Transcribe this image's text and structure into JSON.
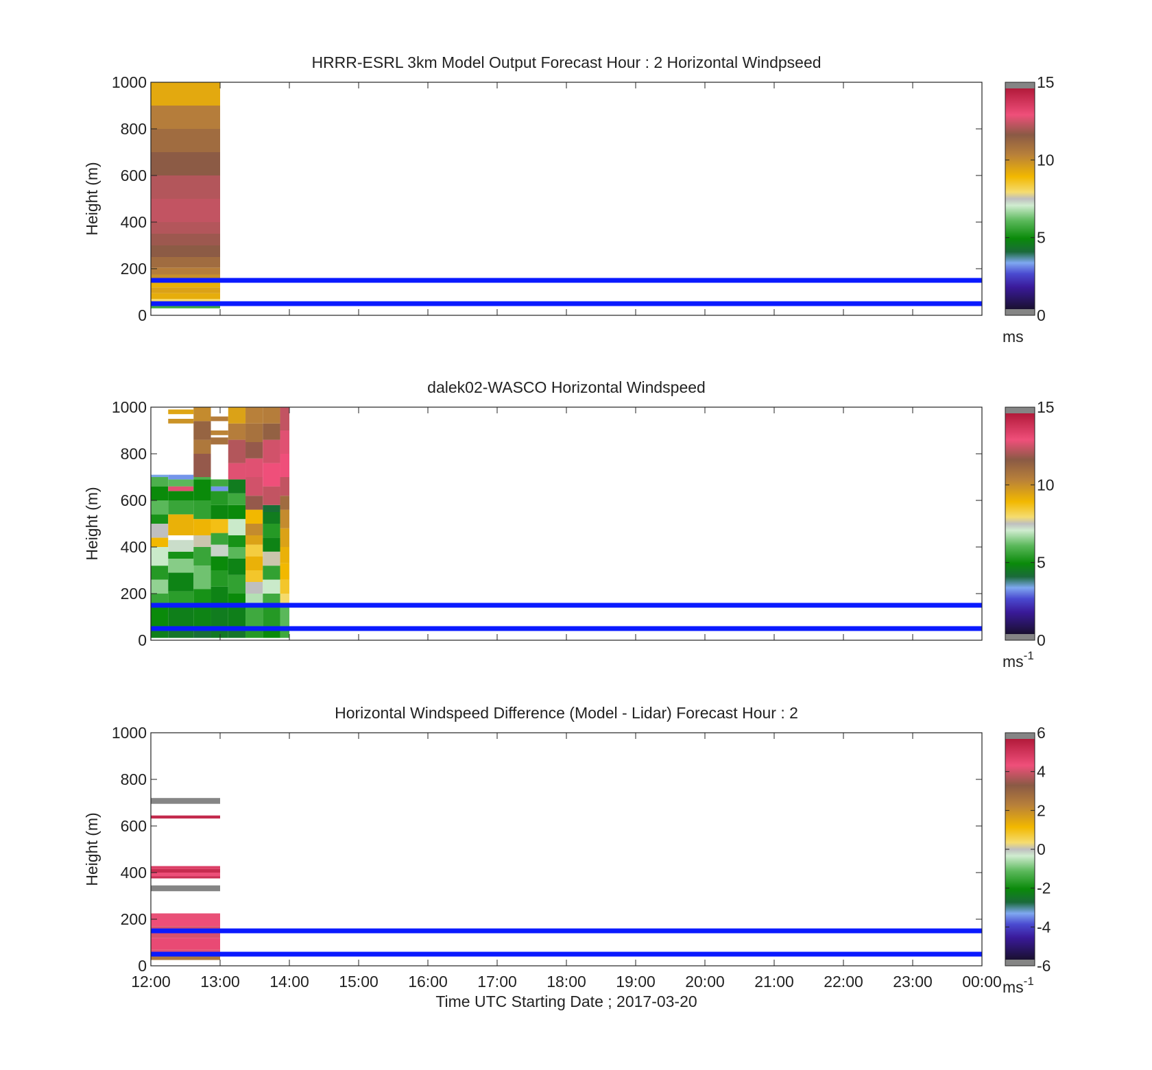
{
  "chart_data": [
    {
      "type": "heatmap",
      "title": "HRRR-ESRL 3km Model Output   Forecast Hour : 2 Horizontal Windpseed",
      "ylabel": "Height (m)",
      "xlabel": "",
      "ylim": [
        0,
        1000
      ],
      "yticks": [
        0,
        200,
        400,
        600,
        800,
        1000
      ],
      "xticks": [
        "12:00",
        "13:00",
        "14:00",
        "15:00",
        "16:00",
        "17:00",
        "18:00",
        "19:00",
        "20:00",
        "21:00",
        "22:00",
        "23:00",
        "00:00"
      ],
      "colorbar": {
        "range": [
          0,
          15
        ],
        "ticks": [
          0,
          5,
          10,
          15
        ],
        "unit": "ms",
        "unit_sup": "",
        "palette": "windspeed"
      },
      "reference_lines_m": [
        50,
        150
      ],
      "columns": [
        {
          "x0": "12:00",
          "x1": "13:00",
          "cells": [
            {
              "h0": 30,
              "h1": 45,
              "v": 5.6
            },
            {
              "h0": 45,
              "h1": 70,
              "v": 8.0
            },
            {
              "h0": 70,
              "h1": 95,
              "v": 9.3
            },
            {
              "h0": 95,
              "h1": 120,
              "v": 9.6
            },
            {
              "h0": 120,
              "h1": 145,
              "v": 9.2
            },
            {
              "h0": 145,
              "h1": 175,
              "v": 10.1
            },
            {
              "h0": 175,
              "h1": 205,
              "v": 10.6
            },
            {
              "h0": 205,
              "h1": 250,
              "v": 11.2
            },
            {
              "h0": 250,
              "h1": 300,
              "v": 11.8
            },
            {
              "h0": 300,
              "h1": 350,
              "v": 12.1
            },
            {
              "h0": 350,
              "h1": 400,
              "v": 12.4
            },
            {
              "h0": 400,
              "h1": 500,
              "v": 12.6
            },
            {
              "h0": 500,
              "h1": 600,
              "v": 12.4
            },
            {
              "h0": 600,
              "h1": 700,
              "v": 11.8
            },
            {
              "h0": 700,
              "h1": 800,
              "v": 11.2
            },
            {
              "h0": 800,
              "h1": 900,
              "v": 10.6
            },
            {
              "h0": 900,
              "h1": 1000,
              "v": 9.4
            }
          ]
        }
      ]
    },
    {
      "type": "heatmap",
      "title": "dalek02-WASCO  Horizontal Windspeed",
      "ylabel": "Height (m)",
      "xlabel": "",
      "ylim": [
        0,
        1000
      ],
      "yticks": [
        0,
        200,
        400,
        600,
        800,
        1000
      ],
      "xticks": [
        "12:00",
        "13:00",
        "14:00",
        "15:00",
        "16:00",
        "17:00",
        "18:00",
        "19:00",
        "20:00",
        "21:00",
        "22:00",
        "23:00",
        "00:00"
      ],
      "colorbar": {
        "range": [
          0,
          15
        ],
        "ticks": [
          0,
          5,
          10,
          15
        ],
        "unit": "ms",
        "unit_sup": "-1",
        "palette": "windspeed"
      },
      "reference_lines_m": [
        50,
        150
      ],
      "columns": [
        {
          "x0": "12:00",
          "x1": "12:15",
          "cells": [
            {
              "h0": 10,
              "h1": 60,
              "v": 4.5
            },
            {
              "h0": 60,
              "h1": 150,
              "v": 4.8
            },
            {
              "h0": 150,
              "h1": 200,
              "v": 5.5
            },
            {
              "h0": 200,
              "h1": 260,
              "v": 6.5
            },
            {
              "h0": 260,
              "h1": 320,
              "v": 5.2
            },
            {
              "h0": 320,
              "h1": 400,
              "v": 7.0
            },
            {
              "h0": 400,
              "h1": 440,
              "v": 9.0
            },
            {
              "h0": 440,
              "h1": 500,
              "v": 7.5
            },
            {
              "h0": 500,
              "h1": 540,
              "v": 5.0
            },
            {
              "h0": 540,
              "h1": 600,
              "v": 6.0
            },
            {
              "h0": 600,
              "h1": 660,
              "v": 4.8
            },
            {
              "h0": 660,
              "h1": 700,
              "v": 5.8
            },
            {
              "h0": 700,
              "h1": 710,
              "v": 3.2
            }
          ]
        },
        {
          "x0": "12:15",
          "x1": "12:37",
          "cells": [
            {
              "h0": 10,
              "h1": 60,
              "v": 4.2
            },
            {
              "h0": 60,
              "h1": 150,
              "v": 4.5
            },
            {
              "h0": 150,
              "h1": 210,
              "v": 5.3
            },
            {
              "h0": 210,
              "h1": 290,
              "v": 4.6
            },
            {
              "h0": 290,
              "h1": 350,
              "v": 6.4
            },
            {
              "h0": 350,
              "h1": 380,
              "v": 5.0
            },
            {
              "h0": 380,
              "h1": 430,
              "v": 7.2
            },
            {
              "h0": 450,
              "h1": 540,
              "v": 9.2
            },
            {
              "h0": 540,
              "h1": 600,
              "v": 5.5
            },
            {
              "h0": 600,
              "h1": 640,
              "v": 4.8
            },
            {
              "h0": 640,
              "h1": 660,
              "v": 13.0
            },
            {
              "h0": 660,
              "h1": 690,
              "v": 6.0
            },
            {
              "h0": 690,
              "h1": 710,
              "v": 3.0
            },
            {
              "h0": 930,
              "h1": 950,
              "v": 10.0
            },
            {
              "h0": 970,
              "h1": 990,
              "v": 9.5
            }
          ]
        },
        {
          "x0": "12:37",
          "x1": "12:52",
          "cells": [
            {
              "h0": 10,
              "h1": 60,
              "v": 4.0
            },
            {
              "h0": 60,
              "h1": 150,
              "v": 4.6
            },
            {
              "h0": 150,
              "h1": 220,
              "v": 5.0
            },
            {
              "h0": 220,
              "h1": 320,
              "v": 6.2
            },
            {
              "h0": 320,
              "h1": 400,
              "v": 5.5
            },
            {
              "h0": 400,
              "h1": 450,
              "v": 7.6
            },
            {
              "h0": 450,
              "h1": 520,
              "v": 9.1
            },
            {
              "h0": 520,
              "h1": 600,
              "v": 5.4
            },
            {
              "h0": 600,
              "h1": 690,
              "v": 4.8
            },
            {
              "h0": 690,
              "h1": 700,
              "v": 5.8
            },
            {
              "h0": 700,
              "h1": 800,
              "v": 12.0
            },
            {
              "h0": 800,
              "h1": 860,
              "v": 10.8
            },
            {
              "h0": 860,
              "h1": 940,
              "v": 11.5
            },
            {
              "h0": 940,
              "h1": 1000,
              "v": 10.2
            }
          ]
        },
        {
          "x0": "12:52",
          "x1": "13:07",
          "cells": [
            {
              "h0": 10,
              "h1": 60,
              "v": 4.3
            },
            {
              "h0": 60,
              "h1": 150,
              "v": 4.4
            },
            {
              "h0": 150,
              "h1": 230,
              "v": 4.6
            },
            {
              "h0": 230,
              "h1": 300,
              "v": 5.2
            },
            {
              "h0": 300,
              "h1": 360,
              "v": 4.8
            },
            {
              "h0": 360,
              "h1": 410,
              "v": 7.3
            },
            {
              "h0": 410,
              "h1": 460,
              "v": 5.5
            },
            {
              "h0": 460,
              "h1": 520,
              "v": 8.8
            },
            {
              "h0": 520,
              "h1": 580,
              "v": 4.7
            },
            {
              "h0": 580,
              "h1": 640,
              "v": 5.2
            },
            {
              "h0": 640,
              "h1": 660,
              "v": 3.0
            },
            {
              "h0": 660,
              "h1": 690,
              "v": 5.6
            },
            {
              "h0": 840,
              "h1": 870,
              "v": 11.0
            },
            {
              "h0": 880,
              "h1": 900,
              "v": 10.4
            },
            {
              "h0": 940,
              "h1": 960,
              "v": 10.6
            }
          ]
        },
        {
          "x0": "13:07",
          "x1": "13:22",
          "cells": [
            {
              "h0": 10,
              "h1": 60,
              "v": 4.2
            },
            {
              "h0": 60,
              "h1": 150,
              "v": 4.5
            },
            {
              "h0": 150,
              "h1": 200,
              "v": 4.8
            },
            {
              "h0": 200,
              "h1": 280,
              "v": 5.4
            },
            {
              "h0": 280,
              "h1": 350,
              "v": 4.6
            },
            {
              "h0": 350,
              "h1": 400,
              "v": 6.0
            },
            {
              "h0": 400,
              "h1": 450,
              "v": 5.0
            },
            {
              "h0": 450,
              "h1": 520,
              "v": 7.0
            },
            {
              "h0": 520,
              "h1": 580,
              "v": 4.8
            },
            {
              "h0": 580,
              "h1": 630,
              "v": 5.6
            },
            {
              "h0": 630,
              "h1": 690,
              "v": 4.4
            },
            {
              "h0": 690,
              "h1": 760,
              "v": 13.0
            },
            {
              "h0": 760,
              "h1": 860,
              "v": 12.4
            },
            {
              "h0": 860,
              "h1": 930,
              "v": 10.6
            },
            {
              "h0": 930,
              "h1": 1000,
              "v": 9.6
            }
          ]
        },
        {
          "x0": "13:22",
          "x1": "13:37",
          "cells": [
            {
              "h0": 10,
              "h1": 60,
              "v": 5.2
            },
            {
              "h0": 60,
              "h1": 150,
              "v": 5.6
            },
            {
              "h0": 150,
              "h1": 200,
              "v": 6.8
            },
            {
              "h0": 200,
              "h1": 250,
              "v": 7.5
            },
            {
              "h0": 250,
              "h1": 300,
              "v": 8.6
            },
            {
              "h0": 300,
              "h1": 360,
              "v": 9.2
            },
            {
              "h0": 360,
              "h1": 410,
              "v": 8.4
            },
            {
              "h0": 410,
              "h1": 450,
              "v": 9.6
            },
            {
              "h0": 450,
              "h1": 500,
              "v": 10.2
            },
            {
              "h0": 500,
              "h1": 560,
              "v": 9.0
            },
            {
              "h0": 560,
              "h1": 620,
              "v": 12.0
            },
            {
              "h0": 620,
              "h1": 700,
              "v": 12.8
            },
            {
              "h0": 700,
              "h1": 780,
              "v": 13.0
            },
            {
              "h0": 780,
              "h1": 850,
              "v": 12.0
            },
            {
              "h0": 850,
              "h1": 930,
              "v": 11.0
            },
            {
              "h0": 930,
              "h1": 1000,
              "v": 10.5
            }
          ]
        },
        {
          "x0": "13:37",
          "x1": "13:52",
          "cells": [
            {
              "h0": 10,
              "h1": 60,
              "v": 4.8
            },
            {
              "h0": 60,
              "h1": 150,
              "v": 5.2
            },
            {
              "h0": 150,
              "h1": 200,
              "v": 5.6
            },
            {
              "h0": 200,
              "h1": 260,
              "v": 7.0
            },
            {
              "h0": 260,
              "h1": 320,
              "v": 5.4
            },
            {
              "h0": 320,
              "h1": 380,
              "v": 7.6
            },
            {
              "h0": 380,
              "h1": 440,
              "v": 4.6
            },
            {
              "h0": 440,
              "h1": 500,
              "v": 5.2
            },
            {
              "h0": 500,
              "h1": 550,
              "v": 4.4
            },
            {
              "h0": 550,
              "h1": 580,
              "v": 4.0
            },
            {
              "h0": 580,
              "h1": 660,
              "v": 12.6
            },
            {
              "h0": 660,
              "h1": 760,
              "v": 13.2
            },
            {
              "h0": 760,
              "h1": 860,
              "v": 12.8
            },
            {
              "h0": 860,
              "h1": 930,
              "v": 11.6
            },
            {
              "h0": 930,
              "h1": 1000,
              "v": 10.6
            }
          ]
        },
        {
          "x0": "13:52",
          "x1": "14:00",
          "cells": [
            {
              "h0": 10,
              "h1": 60,
              "v": 5.6
            },
            {
              "h0": 60,
              "h1": 150,
              "v": 6.0
            },
            {
              "h0": 150,
              "h1": 200,
              "v": 8.0
            },
            {
              "h0": 200,
              "h1": 260,
              "v": 8.6
            },
            {
              "h0": 260,
              "h1": 330,
              "v": 9.0
            },
            {
              "h0": 330,
              "h1": 400,
              "v": 9.2
            },
            {
              "h0": 400,
              "h1": 480,
              "v": 9.6
            },
            {
              "h0": 480,
              "h1": 560,
              "v": 10.2
            },
            {
              "h0": 560,
              "h1": 620,
              "v": 11.2
            },
            {
              "h0": 620,
              "h1": 700,
              "v": 12.6
            },
            {
              "h0": 700,
              "h1": 800,
              "v": 13.2
            },
            {
              "h0": 800,
              "h1": 900,
              "v": 13.0
            },
            {
              "h0": 900,
              "h1": 1000,
              "v": 12.6
            }
          ]
        }
      ]
    },
    {
      "type": "heatmap",
      "title": "Horizontal Windspeed Difference (Model - Lidar) Forecast Hour : 2",
      "ylabel": "Height (m)",
      "xlabel": "Time UTC  Starting Date ; 2017-03-20",
      "ylim": [
        0,
        1000
      ],
      "yticks": [
        0,
        200,
        400,
        600,
        800,
        1000
      ],
      "xticks": [
        "12:00",
        "13:00",
        "14:00",
        "15:00",
        "16:00",
        "17:00",
        "18:00",
        "19:00",
        "20:00",
        "21:00",
        "22:00",
        "23:00",
        "00:00"
      ],
      "colorbar": {
        "range": [
          -6,
          6
        ],
        "ticks": [
          -6,
          -4,
          -2,
          0,
          2,
          4,
          6
        ],
        "unit": "ms",
        "unit_sup": "-1",
        "palette": "difference"
      },
      "reference_lines_m": [
        50,
        150
      ],
      "columns": [
        {
          "x0": "12:00",
          "x1": "13:00",
          "cells": [
            {
              "h0": 25,
              "h1": 40,
              "v": 2.6
            },
            {
              "h0": 40,
              "h1": 70,
              "v": 4.4
            },
            {
              "h0": 70,
              "h1": 120,
              "v": 4.7
            },
            {
              "h0": 120,
              "h1": 170,
              "v": 4.3
            },
            {
              "h0": 170,
              "h1": 200,
              "v": 4.6
            },
            {
              "h0": 200,
              "h1": 225,
              "v": 4.5
            },
            {
              "h0": 320,
              "h1": 345,
              "v": 6.2
            },
            {
              "h0": 375,
              "h1": 385,
              "v": 5.4
            },
            {
              "h0": 385,
              "h1": 400,
              "v": 4.6
            },
            {
              "h0": 400,
              "h1": 415,
              "v": 5.5
            },
            {
              "h0": 415,
              "h1": 428,
              "v": 5.0
            },
            {
              "h0": 632,
              "h1": 645,
              "v": 5.6
            },
            {
              "h0": 695,
              "h1": 720,
              "v": 6.3
            }
          ]
        }
      ]
    }
  ]
}
